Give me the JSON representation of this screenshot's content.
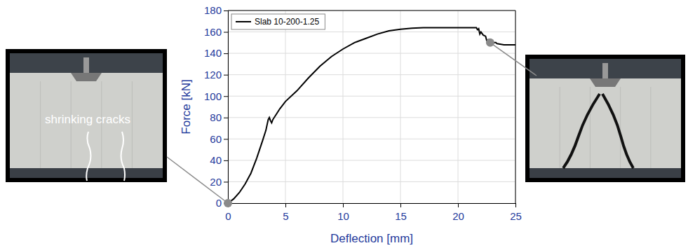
{
  "chart_data": {
    "type": "line",
    "x_label": "Deflection [mm]",
    "y_label": "Force [kN]",
    "x": [
      0,
      0.5,
      1,
      1.5,
      2,
      2.5,
      3,
      3.3,
      3.5,
      3.6,
      3.7,
      3.8,
      3.9,
      4.2,
      4.5,
      5,
      6,
      7,
      8,
      9,
      10,
      11,
      12,
      13,
      14,
      15,
      16,
      17,
      18,
      19,
      20,
      21,
      21.6,
      21.7,
      21.8,
      21.9,
      22,
      22.2,
      22.4,
      22.5,
      22.7,
      22.8,
      23,
      23.3,
      23.4,
      24,
      25
    ],
    "series": [
      {
        "name": "Slab 10-200-1.25",
        "color": "#000000",
        "line_style": "solid",
        "values": [
          0,
          4,
          10,
          18,
          28,
          42,
          58,
          68,
          78,
          80,
          77,
          75,
          78,
          83,
          88,
          95,
          105,
          117,
          128,
          137,
          144,
          150,
          154,
          158,
          161,
          162.5,
          163.5,
          164,
          164,
          164,
          164,
          164,
          164,
          162,
          163,
          158,
          160,
          157,
          156,
          152,
          153,
          151,
          150,
          150,
          149,
          148,
          148
        ]
      }
    ],
    "xlim": [
      0,
      25
    ],
    "ylim": [
      0,
      180
    ],
    "xticks": [
      0,
      5,
      10,
      15,
      20,
      25
    ],
    "yticks": [
      0,
      20,
      40,
      60,
      80,
      100,
      120,
      140,
      160,
      180
    ],
    "grid": true,
    "legend": "upper left",
    "annotations": [
      {
        "text": "shrinking cracks",
        "x": 0,
        "y": 0
      },
      {
        "x": 22.8,
        "y": 150
      }
    ]
  }
}
